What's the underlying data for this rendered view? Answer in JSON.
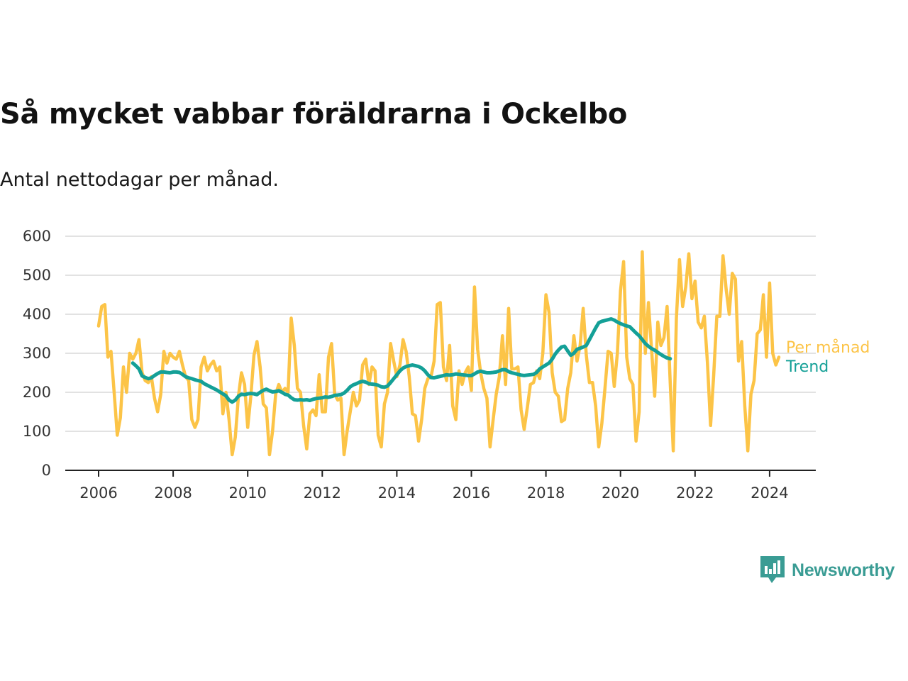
{
  "title": "Så mycket vabbar föräldrarna i Ockelbo",
  "subtitle": "Antal nettodagar per månad.",
  "brand": {
    "name": "Newsworthy",
    "color": "#3a9c94",
    "icon": "newsworthy-logo-icon"
  },
  "chart_data": {
    "type": "line",
    "ylim": [
      0,
      600
    ],
    "xlim": [
      2005.1,
      2025.2
    ],
    "y_ticks": [
      "0",
      "100",
      "200",
      "300",
      "400",
      "500",
      "600"
    ],
    "x_ticks": [
      "2006",
      "2008",
      "2010",
      "2012",
      "2014",
      "2016",
      "2018",
      "2020",
      "2022",
      "2024"
    ],
    "grid": true,
    "legend": "right-end labels",
    "series": [
      {
        "name": "Per månad",
        "color": "#fcc447",
        "start": "2006-01",
        "values": [
          370,
          420,
          425,
          290,
          305,
          200,
          90,
          135,
          265,
          200,
          300,
          285,
          300,
          335,
          250,
          230,
          225,
          240,
          185,
          150,
          195,
          305,
          275,
          300,
          290,
          285,
          305,
          270,
          240,
          230,
          130,
          110,
          130,
          265,
          290,
          255,
          270,
          280,
          255,
          265,
          145,
          200,
          130,
          40,
          85,
          190,
          250,
          220,
          110,
          190,
          295,
          330,
          265,
          170,
          160,
          40,
          100,
          195,
          220,
          200,
          210,
          200,
          390,
          320,
          210,
          200,
          115,
          55,
          145,
          155,
          140,
          245,
          150,
          150,
          290,
          325,
          195,
          180,
          185,
          40,
          100,
          150,
          200,
          165,
          180,
          270,
          285,
          220,
          265,
          255,
          90,
          60,
          170,
          200,
          325,
          280,
          240,
          270,
          335,
          305,
          240,
          145,
          140,
          75,
          130,
          210,
          235,
          240,
          280,
          425,
          430,
          265,
          230,
          320,
          165,
          130,
          255,
          220,
          250,
          265,
          205,
          470,
          310,
          250,
          210,
          185,
          60,
          130,
          195,
          240,
          345,
          220,
          415,
          260,
          260,
          265,
          155,
          105,
          160,
          220,
          225,
          255,
          235,
          300,
          450,
          405,
          250,
          200,
          190,
          125,
          130,
          210,
          250,
          345,
          280,
          320,
          415,
          295,
          225,
          225,
          165,
          60,
          120,
          210,
          305,
          300,
          215,
          300,
          460,
          535,
          290,
          235,
          220,
          75,
          150,
          560,
          300,
          430,
          310,
          190,
          380,
          320,
          340,
          420,
          225,
          50,
          390,
          540,
          420,
          470,
          555,
          440,
          485,
          380,
          365,
          395,
          275,
          115,
          245,
          395,
          395,
          550,
          465,
          400,
          505,
          490,
          280,
          330,
          165,
          50,
          195,
          230,
          350,
          360,
          450,
          290,
          480,
          300,
          270,
          290
        ]
      },
      {
        "name": "Trend",
        "color": "#14a097",
        "start": "2006-12",
        "values": [
          275,
          268,
          260,
          242,
          238,
          235,
          237,
          243,
          248,
          252,
          252,
          251,
          250,
          252,
          252,
          251,
          246,
          240,
          237,
          235,
          232,
          230,
          228,
          222,
          218,
          214,
          210,
          206,
          201,
          196,
          191,
          180,
          175,
          180,
          190,
          195,
          194,
          196,
          197,
          196,
          194,
          200,
          205,
          208,
          204,
          201,
          202,
          204,
          200,
          195,
          193,
          186,
          181,
          180,
          181,
          180,
          181,
          179,
          182,
          184,
          185,
          186,
          188,
          187,
          189,
          192,
          193,
          194,
          198,
          205,
          214,
          219,
          222,
          226,
          228,
          226,
          222,
          221,
          220,
          218,
          214,
          213,
          216,
          225,
          235,
          245,
          255,
          262,
          266,
          268,
          270,
          268,
          266,
          262,
          255,
          245,
          238,
          237,
          239,
          241,
          243,
          245,
          244,
          245,
          247,
          246,
          245,
          244,
          243,
          243,
          247,
          252,
          254,
          252,
          250,
          250,
          251,
          252,
          255,
          258,
          258,
          253,
          250,
          248,
          246,
          244,
          243,
          244,
          245,
          246,
          251,
          260,
          265,
          270,
          275,
          285,
          298,
          308,
          316,
          318,
          306,
          295,
          300,
          310,
          313,
          316,
          320,
          335,
          350,
          365,
          378,
          382,
          384,
          386,
          388,
          385,
          380,
          376,
          373,
          370,
          368,
          360,
          352,
          345,
          335,
          325,
          318,
          312,
          308,
          302,
          297,
          292,
          288,
          286
        ]
      }
    ]
  }
}
